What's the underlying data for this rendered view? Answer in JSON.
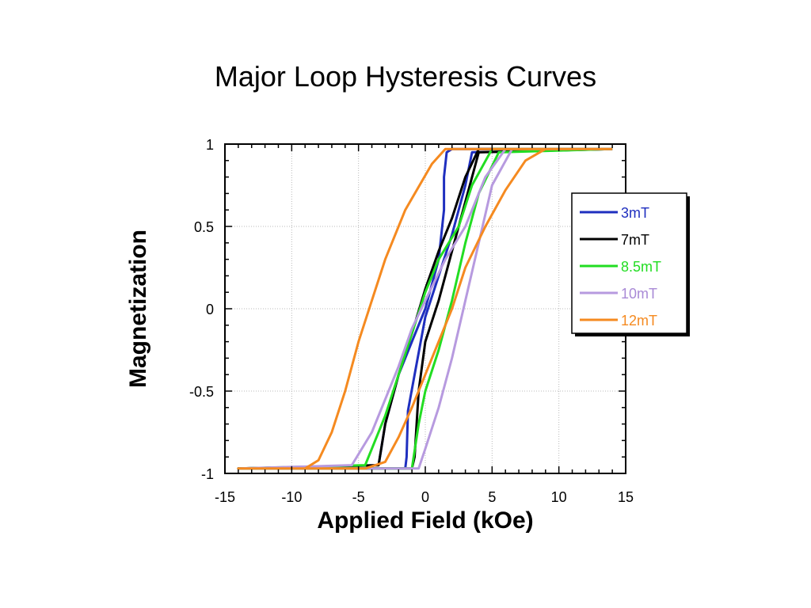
{
  "title": "Major Loop Hysteresis Curves",
  "chart_data": {
    "type": "line",
    "title": "Major Loop Hysteresis Curves",
    "xlabel": "Applied Field (kOe)",
    "ylabel": "Magnetization",
    "xlim": [
      -15,
      15
    ],
    "ylim": [
      -1,
      1
    ],
    "xticks": [
      -15,
      -10,
      -5,
      0,
      5,
      10,
      15
    ],
    "yticks": [
      -1,
      -0.5,
      0,
      0.5,
      1
    ],
    "grid": true,
    "legend_position": "right",
    "series": [
      {
        "name": "3mT",
        "color": "#1f2fbf",
        "label_color": "#1f2fbf",
        "descending": [
          [
            14,
            0.97
          ],
          [
            2,
            0.97
          ],
          [
            1.6,
            0.95
          ],
          [
            1.4,
            0.8
          ],
          [
            1.4,
            0.6
          ],
          [
            1.0,
            0.3
          ],
          [
            0,
            0
          ],
          [
            -1,
            -0.2
          ],
          [
            -2,
            -0.4
          ],
          [
            -3,
            -0.7
          ],
          [
            -3.5,
            -0.95
          ],
          [
            -14,
            -0.97
          ]
        ],
        "ascending": [
          [
            -14,
            -0.97
          ],
          [
            -1.5,
            -0.97
          ],
          [
            -1.4,
            -0.9
          ],
          [
            -1.3,
            -0.62
          ],
          [
            -0.8,
            -0.4
          ],
          [
            0,
            -0.05
          ],
          [
            1,
            0.2
          ],
          [
            2,
            0.45
          ],
          [
            3,
            0.75
          ],
          [
            3.5,
            0.95
          ],
          [
            14,
            0.97
          ]
        ]
      },
      {
        "name": "7mT",
        "color": "#000000",
        "label_color": "#000000",
        "descending": [
          [
            14,
            0.97
          ],
          [
            4,
            0.97
          ],
          [
            3,
            0.8
          ],
          [
            2,
            0.55
          ],
          [
            1,
            0.35
          ],
          [
            0,
            0.12
          ],
          [
            -1,
            -0.15
          ],
          [
            -2,
            -0.4
          ],
          [
            -3,
            -0.7
          ],
          [
            -3.5,
            -0.95
          ],
          [
            -14,
            -0.97
          ]
        ],
        "ascending": [
          [
            -14,
            -0.97
          ],
          [
            -1,
            -0.97
          ],
          [
            -0.8,
            -0.9
          ],
          [
            -0.5,
            -0.5
          ],
          [
            0,
            -0.2
          ],
          [
            1,
            0.05
          ],
          [
            2,
            0.35
          ],
          [
            3,
            0.65
          ],
          [
            4,
            0.95
          ],
          [
            14,
            0.97
          ]
        ]
      },
      {
        "name": "8.5mT",
        "color": "#22dd22",
        "label_color": "#22dd22",
        "descending": [
          [
            14,
            0.97
          ],
          [
            5,
            0.97
          ],
          [
            3.5,
            0.75
          ],
          [
            2.5,
            0.5
          ],
          [
            1,
            0.3
          ],
          [
            0,
            0.1
          ],
          [
            -1,
            -0.15
          ],
          [
            -2,
            -0.4
          ],
          [
            -3,
            -0.65
          ],
          [
            -4.5,
            -0.95
          ],
          [
            -14,
            -0.97
          ]
        ],
        "ascending": [
          [
            -14,
            -0.97
          ],
          [
            -1,
            -0.97
          ],
          [
            -0.5,
            -0.7
          ],
          [
            0,
            -0.5
          ],
          [
            1,
            -0.25
          ],
          [
            2,
            0.05
          ],
          [
            3,
            0.4
          ],
          [
            4,
            0.7
          ],
          [
            5.5,
            0.95
          ],
          [
            14,
            0.97
          ]
        ]
      },
      {
        "name": "10mT",
        "color": "#b79adf",
        "label_color": "#a98ad6",
        "descending": [
          [
            14,
            0.97
          ],
          [
            6,
            0.97
          ],
          [
            4.5,
            0.8
          ],
          [
            3,
            0.5
          ],
          [
            1.5,
            0.3
          ],
          [
            0,
            0.05
          ],
          [
            -1,
            -0.12
          ],
          [
            -2,
            -0.35
          ],
          [
            -3,
            -0.55
          ],
          [
            -4,
            -0.75
          ],
          [
            -5.5,
            -0.95
          ],
          [
            -14,
            -0.97
          ]
        ],
        "ascending": [
          [
            -14,
            -0.97
          ],
          [
            -0.5,
            -0.97
          ],
          [
            0,
            -0.85
          ],
          [
            1,
            -0.6
          ],
          [
            2,
            -0.3
          ],
          [
            3,
            0.05
          ],
          [
            4,
            0.4
          ],
          [
            5,
            0.75
          ],
          [
            6.5,
            0.97
          ],
          [
            14,
            0.97
          ]
        ]
      },
      {
        "name": "12mT",
        "color": "#f58a20",
        "label_color": "#f58a20",
        "descending": [
          [
            14,
            0.97
          ],
          [
            1.5,
            0.97
          ],
          [
            0.5,
            0.88
          ],
          [
            -1.5,
            0.6
          ],
          [
            -3,
            0.3
          ],
          [
            -4,
            0.05
          ],
          [
            -5,
            -0.2
          ],
          [
            -6,
            -0.5
          ],
          [
            -7,
            -0.75
          ],
          [
            -8,
            -0.92
          ],
          [
            -9,
            -0.97
          ],
          [
            -14,
            -0.97
          ]
        ],
        "ascending": [
          [
            -14,
            -0.97
          ],
          [
            -4.5,
            -0.97
          ],
          [
            -3,
            -0.93
          ],
          [
            -2,
            -0.78
          ],
          [
            -1,
            -0.6
          ],
          [
            0.5,
            -0.3
          ],
          [
            2,
            0
          ],
          [
            3,
            0.25
          ],
          [
            4.5,
            0.5
          ],
          [
            6,
            0.72
          ],
          [
            7.5,
            0.9
          ],
          [
            9,
            0.97
          ],
          [
            14,
            0.97
          ]
        ]
      }
    ]
  }
}
